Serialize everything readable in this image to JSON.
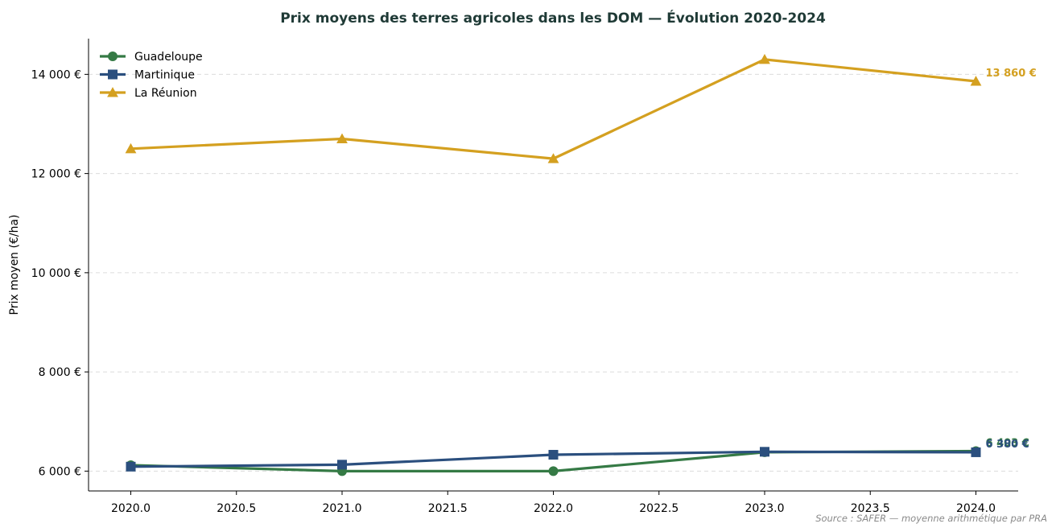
{
  "chart_data": {
    "type": "line",
    "title": "Prix moyens des terres agricoles dans les DOM — Évolution 2020-2024",
    "xlabel": "",
    "ylabel": "Prix moyen (€/ha)",
    "xlim": [
      2019.8,
      2024.2
    ],
    "ylim": [
      5600,
      14720
    ],
    "x_ticks": [
      2020.0,
      2020.5,
      2021.0,
      2021.5,
      2022.0,
      2022.5,
      2023.0,
      2023.5,
      2024.0
    ],
    "x_tick_labels": [
      "2020.0",
      "2020.5",
      "2021.0",
      "2021.5",
      "2022.0",
      "2022.5",
      "2023.0",
      "2023.5",
      "2024.0"
    ],
    "y_ticks": [
      6000,
      8000,
      10000,
      12000,
      14000
    ],
    "y_tick_labels": [
      "6 000 €",
      "8 000 €",
      "10 000 €",
      "12 000 €",
      "14 000 €"
    ],
    "grid": "horizontal dashed",
    "legend_position": "top-left",
    "x": [
      2020,
      2021,
      2022,
      2023,
      2024
    ],
    "series": [
      {
        "name": "Guadeloupe",
        "color": "#357a45",
        "marker": "circle",
        "values": [
          6120,
          6000,
          6000,
          6380,
          6403
        ],
        "end_label": "6 403 €"
      },
      {
        "name": "Martinique",
        "color": "#2b4f7e",
        "marker": "square",
        "values": [
          6090,
          6130,
          6330,
          6390,
          6380
        ],
        "end_label": "6 380 €"
      },
      {
        "name": "La Réunion",
        "color": "#d4a020",
        "marker": "triangle",
        "values": [
          12500,
          12700,
          12300,
          14300,
          13860
        ],
        "end_label": "13 860 €"
      }
    ],
    "source": "Source : SAFER — moyenne arithmétique par PRA"
  }
}
